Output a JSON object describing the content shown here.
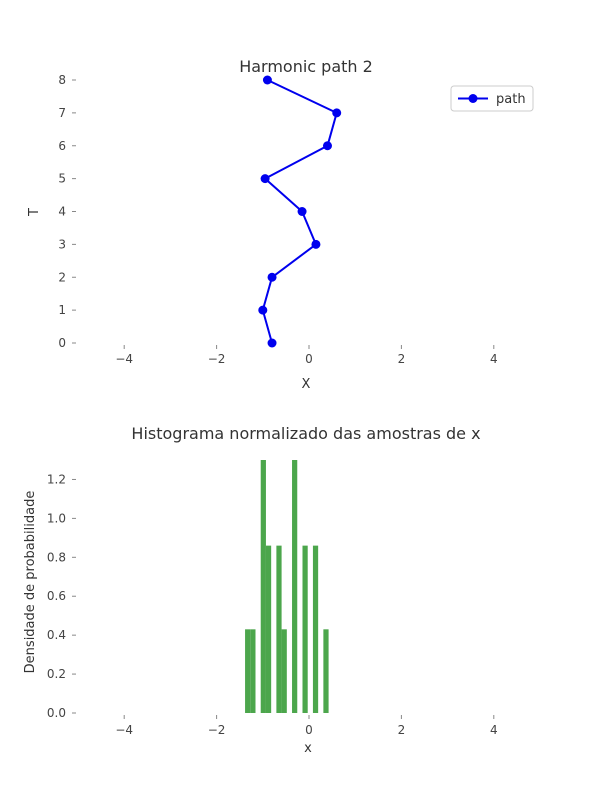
{
  "chart_data": [
    {
      "type": "line",
      "title": "Harmonic path 2",
      "xlabel": "X",
      "ylabel": "T",
      "xlim": [
        -5,
        5
      ],
      "ylim": [
        0,
        8
      ],
      "xticks": [
        -4,
        -2,
        0,
        2,
        4
      ],
      "yticks": [
        0,
        1,
        2,
        3,
        4,
        5,
        6,
        7,
        8
      ],
      "xtick_labels": [
        "−4",
        "−2",
        "0",
        "2",
        "4"
      ],
      "ytick_labels": [
        "0",
        "1",
        "2",
        "3",
        "4",
        "5",
        "6",
        "7",
        "8"
      ],
      "grid": false,
      "legend": "top-right",
      "series": [
        {
          "name": "path",
          "color": "#0000ee",
          "marker": "circle",
          "x": [
            -0.8,
            -1.0,
            -0.8,
            0.15,
            -0.15,
            -0.95,
            0.4,
            0.6,
            -0.9
          ],
          "y": [
            0,
            1,
            2,
            3,
            4,
            5,
            6,
            7,
            8
          ]
        }
      ]
    },
    {
      "type": "bar",
      "title": "Histograma normalizado das amostras de x",
      "xlabel": "x",
      "ylabel": "Densidade de probabilidade",
      "xlim": [
        -5,
        5
      ],
      "ylim": [
        0,
        1.3
      ],
      "xticks": [
        -4,
        -2,
        0,
        2,
        4
      ],
      "yticks": [
        0,
        0.2,
        0.4,
        0.6,
        0.8,
        1.0,
        1.2
      ],
      "xtick_labels": [
        "−4",
        "−2",
        "0",
        "2",
        "4"
      ],
      "ytick_labels": [
        "0.0",
        "0.2",
        "0.4",
        "0.6",
        "0.8",
        "1.0",
        "1.2"
      ],
      "grid": false,
      "color": "#4ca64c",
      "bin_width": 0.113,
      "bin_edges": [
        -1.384,
        -1.271,
        -1.158,
        -1.045,
        -0.932,
        -0.819,
        -0.706,
        -0.593,
        -0.48,
        -0.367,
        -0.254,
        -0.141,
        -0.028,
        0.085,
        0.198,
        0.311,
        0.424,
        0.537
      ],
      "values": [
        0.43,
        0.43,
        0,
        1.3,
        0.86,
        0,
        0.86,
        0.43,
        0,
        1.3,
        0,
        0.86,
        0,
        0.86,
        0,
        0.43,
        0
      ]
    }
  ]
}
